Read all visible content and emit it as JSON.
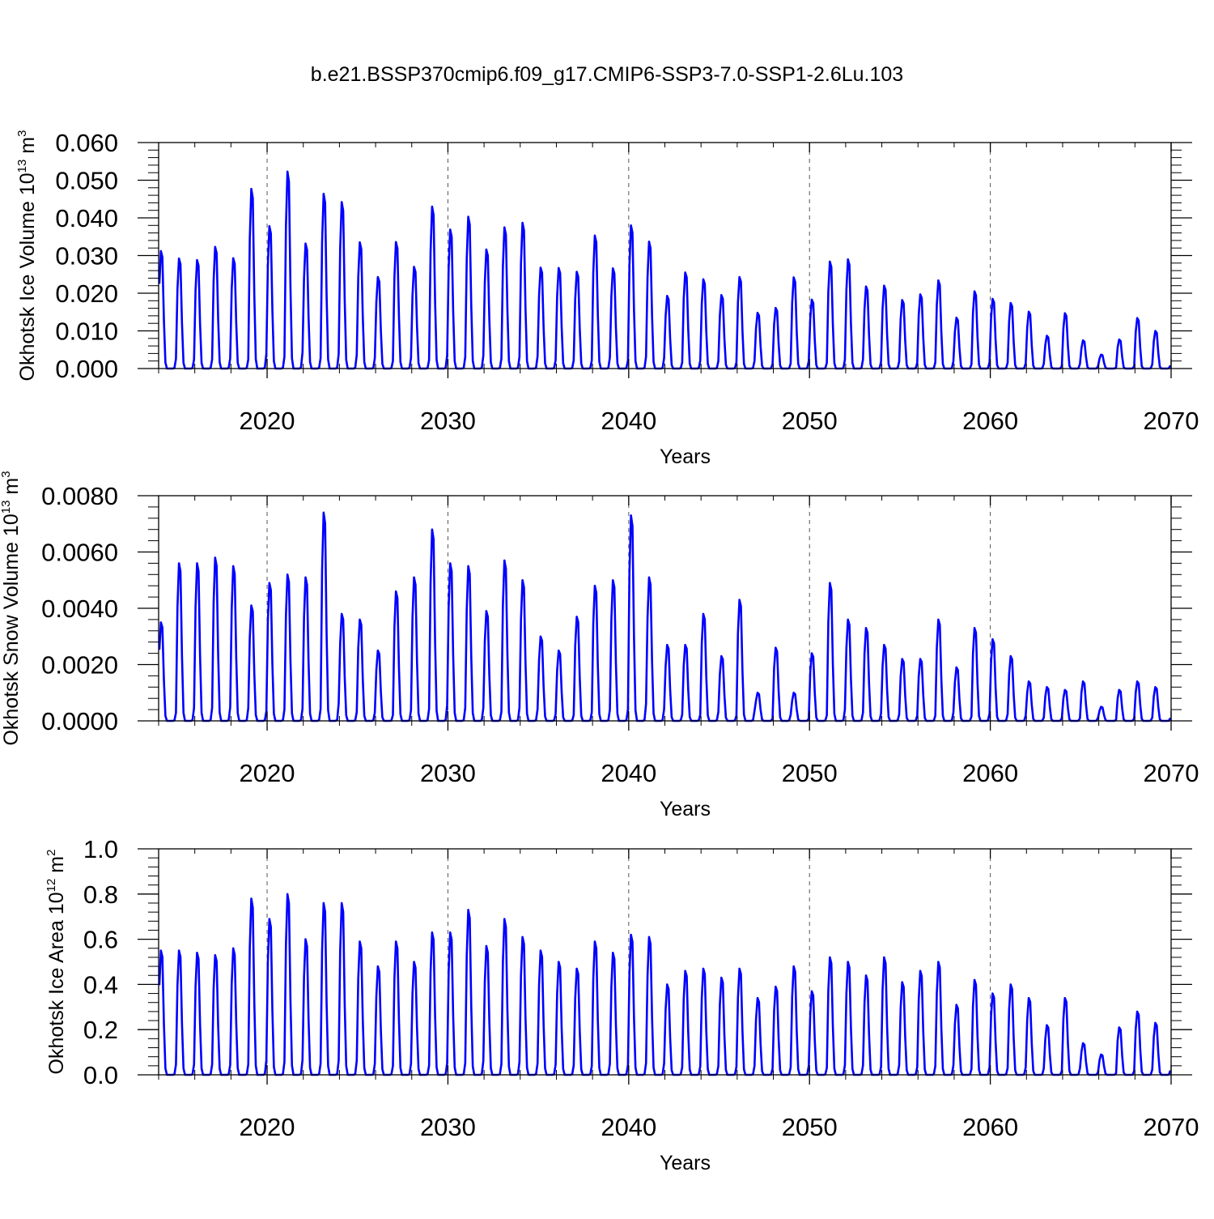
{
  "figure_title": "b.e21.BSSP370cmip6.f09_g17.CMIP6-SSP3-7.0-SSP1-2.6Lu.103",
  "colors": {
    "line": "#0000ff",
    "axis": "#000000",
    "grid": "#555555"
  },
  "chart_data": [
    {
      "type": "line",
      "title": "",
      "xlabel": "Years",
      "ylabel": {
        "text": "Okhotsk Ice Volume 10",
        "sup1": "13",
        "unit": " m",
        "sup2": "3"
      },
      "xlim": [
        2014,
        2070
      ],
      "ylim": [
        0,
        0.06
      ],
      "xticks": [
        2020,
        2030,
        2040,
        2050,
        2060,
        2070
      ],
      "xtick_labels": [
        "2020",
        "2030",
        "2040",
        "2050",
        "2060",
        "2070"
      ],
      "yticks": [
        0,
        0.01,
        0.02,
        0.03,
        0.04,
        0.05,
        0.06
      ],
      "ytick_labels": [
        "0.000",
        "0.010",
        "0.020",
        "0.030",
        "0.040",
        "0.050",
        "0.060"
      ],
      "grid_x_dashed": [
        2020,
        2030,
        2040,
        2050,
        2060
      ],
      "series": [
        {
          "name": "Okhotsk Ice Volume",
          "start_year": 2014,
          "annual_peaks": [
            0.0312,
            0.0292,
            0.0288,
            0.0323,
            0.0293,
            0.0477,
            0.0378,
            0.0523,
            0.0332,
            0.0464,
            0.0442,
            0.0335,
            0.0243,
            0.0336,
            0.027,
            0.043,
            0.0369,
            0.0403,
            0.0316,
            0.0375,
            0.0387,
            0.0268,
            0.0267,
            0.0257,
            0.0353,
            0.0266,
            0.038,
            0.0337,
            0.0193,
            0.0255,
            0.0237,
            0.0195,
            0.0243,
            0.0148,
            0.0161,
            0.0242,
            0.0183,
            0.0284,
            0.029,
            0.0218,
            0.022,
            0.0182,
            0.0197,
            0.0234,
            0.0135,
            0.0205,
            0.0185,
            0.0174,
            0.0151,
            0.0087,
            0.0147,
            0.0075,
            0.0037,
            0.0077,
            0.0134,
            0.01
          ]
        }
      ]
    },
    {
      "type": "line",
      "title": "",
      "xlabel": "Years",
      "ylabel": {
        "text": "Okhotsk Snow Volume 10",
        "sup1": "13",
        "unit": " m",
        "sup2": "3"
      },
      "xlim": [
        2014,
        2070
      ],
      "ylim": [
        0,
        0.008
      ],
      "xticks": [
        2020,
        2030,
        2040,
        2050,
        2060,
        2070
      ],
      "xtick_labels": [
        "2020",
        "2030",
        "2040",
        "2050",
        "2060",
        "2070"
      ],
      "yticks": [
        0,
        0.002,
        0.004,
        0.006,
        0.008
      ],
      "ytick_labels": [
        "0.0000",
        "0.0020",
        "0.0040",
        "0.0060",
        "0.0080"
      ],
      "grid_x_dashed": [
        2020,
        2030,
        2040,
        2050,
        2060
      ],
      "series": [
        {
          "name": "Okhotsk Snow Volume",
          "start_year": 2014,
          "annual_peaks": [
            0.0035,
            0.0056,
            0.0056,
            0.0058,
            0.0055,
            0.0041,
            0.0049,
            0.0052,
            0.0051,
            0.0074,
            0.0038,
            0.0036,
            0.0025,
            0.0046,
            0.0051,
            0.0068,
            0.0056,
            0.0055,
            0.0039,
            0.0057,
            0.005,
            0.003,
            0.0025,
            0.0037,
            0.0048,
            0.005,
            0.0073,
            0.0051,
            0.0027,
            0.0027,
            0.0038,
            0.0023,
            0.0043,
            0.001,
            0.0026,
            0.001,
            0.0024,
            0.0049,
            0.0036,
            0.0033,
            0.0027,
            0.0022,
            0.0022,
            0.0036,
            0.0019,
            0.0033,
            0.0029,
            0.0023,
            0.0014,
            0.0012,
            0.0011,
            0.0014,
            0.0005,
            0.0011,
            0.0014,
            0.0012
          ]
        }
      ]
    },
    {
      "type": "line",
      "title": "",
      "xlabel": "Years",
      "ylabel": {
        "text": "Okhotsk Ice Area 10",
        "sup1": "12",
        "unit": " m",
        "sup2": "2"
      },
      "xlim": [
        2014,
        2070
      ],
      "ylim": [
        0,
        1.0
      ],
      "xticks": [
        2020,
        2030,
        2040,
        2050,
        2060,
        2070
      ],
      "xtick_labels": [
        "2020",
        "2030",
        "2040",
        "2050",
        "2060",
        "2070"
      ],
      "yticks": [
        0,
        0.2,
        0.4,
        0.6,
        0.8,
        1.0
      ],
      "ytick_labels": [
        "0.0",
        "0.2",
        "0.4",
        "0.6",
        "0.8",
        "1.0"
      ],
      "grid_x_dashed": [
        2020,
        2030,
        2040,
        2050,
        2060
      ],
      "series": [
        {
          "name": "Okhotsk Ice Area",
          "start_year": 2014,
          "annual_peaks": [
            0.55,
            0.55,
            0.54,
            0.53,
            0.56,
            0.78,
            0.69,
            0.8,
            0.6,
            0.76,
            0.76,
            0.59,
            0.48,
            0.59,
            0.5,
            0.63,
            0.63,
            0.73,
            0.57,
            0.69,
            0.61,
            0.55,
            0.5,
            0.47,
            0.59,
            0.54,
            0.62,
            0.61,
            0.4,
            0.46,
            0.47,
            0.43,
            0.47,
            0.34,
            0.39,
            0.48,
            0.37,
            0.52,
            0.5,
            0.44,
            0.52,
            0.41,
            0.46,
            0.5,
            0.31,
            0.42,
            0.36,
            0.4,
            0.34,
            0.22,
            0.34,
            0.14,
            0.09,
            0.21,
            0.28,
            0.23
          ]
        }
      ]
    }
  ]
}
